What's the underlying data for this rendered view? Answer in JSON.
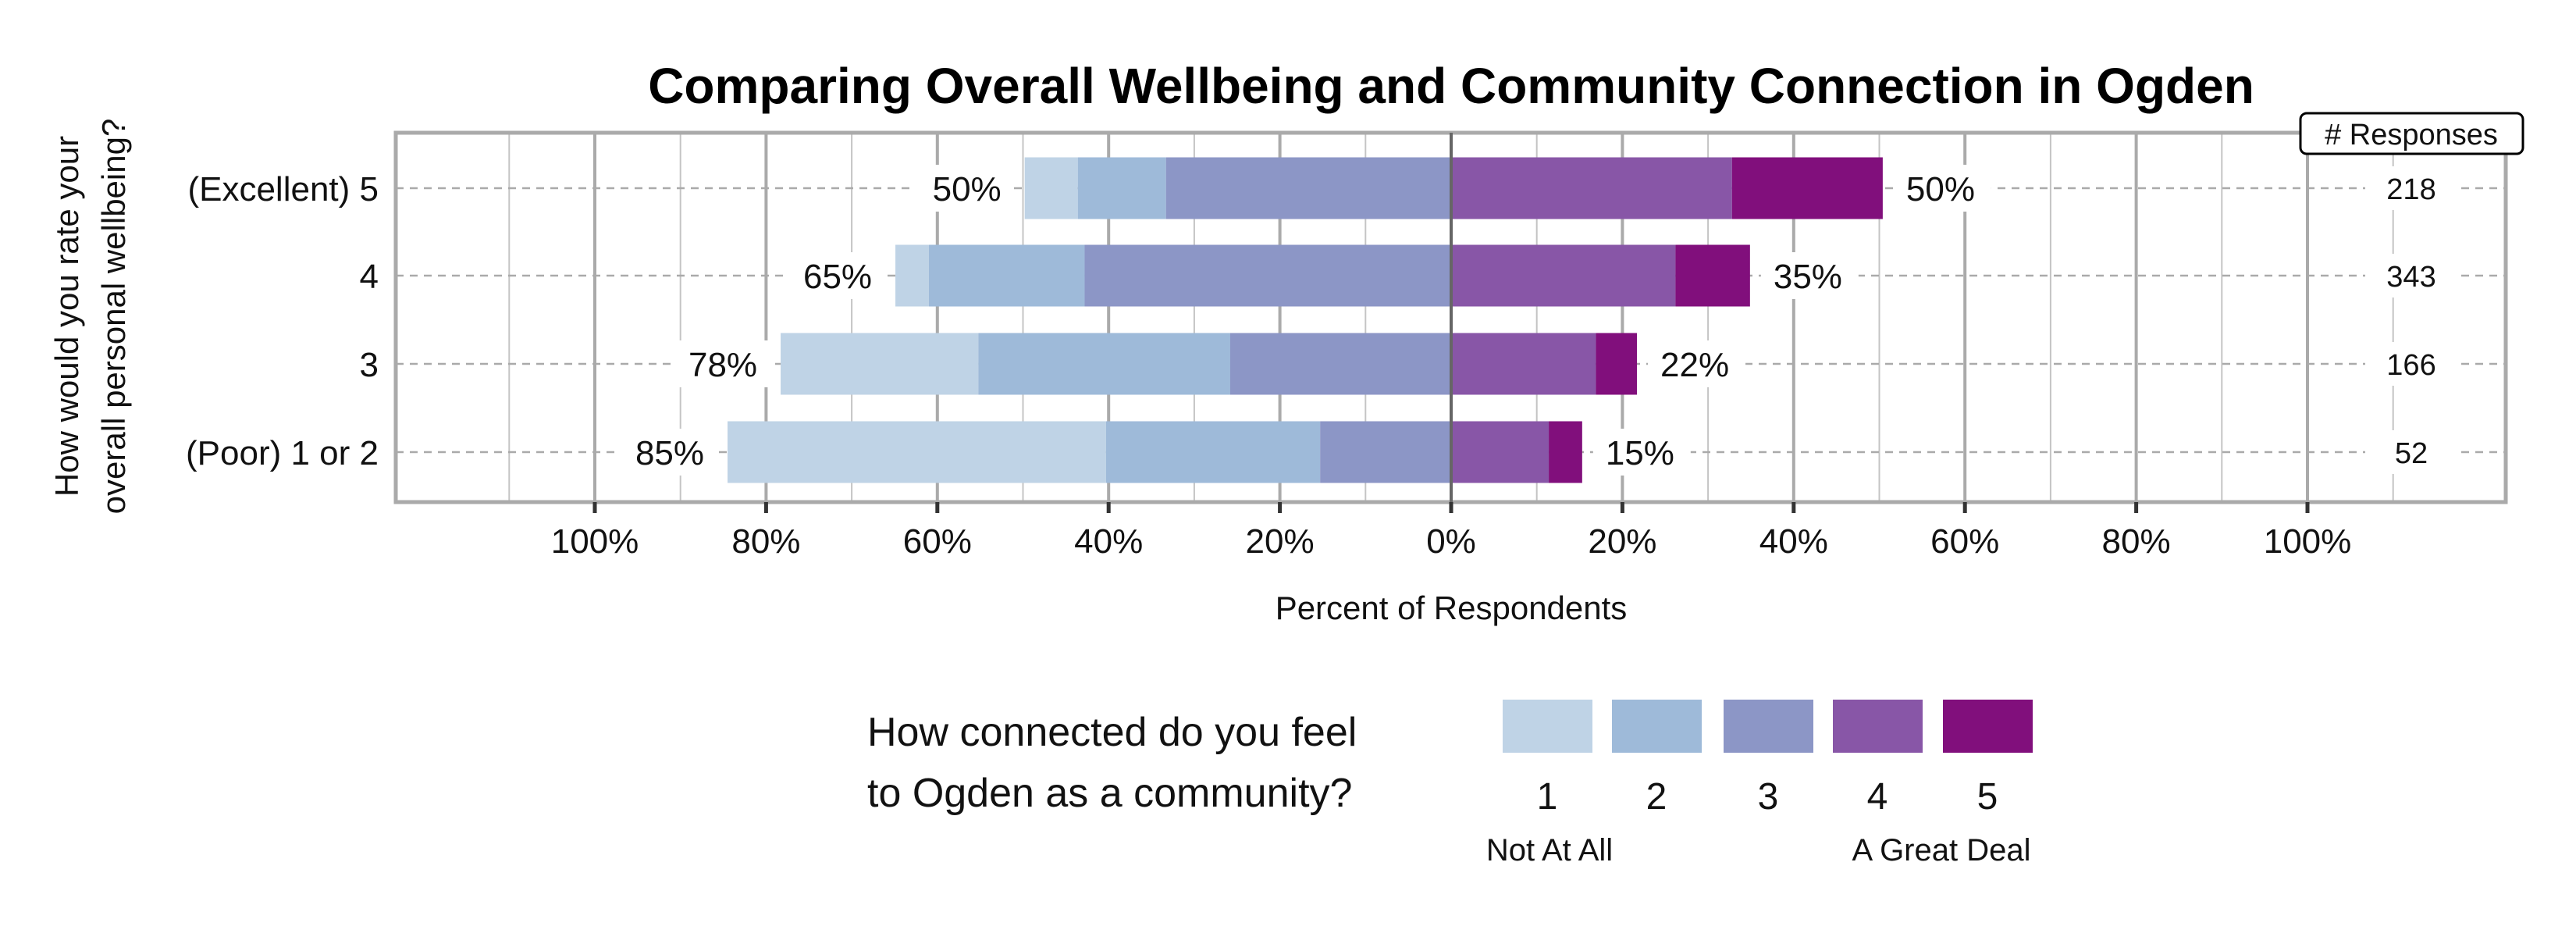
{
  "chart_data": {
    "type": "bar",
    "orientation": "horizontal-diverging-stacked",
    "title": "Comparing Overall Wellbeing and Community Connection in Ogden",
    "xlabel": "Percent of Respondents",
    "ylabel_lines": [
      "How would you rate your",
      "overall personal wellbeing?"
    ],
    "xlim": [
      -100,
      100
    ],
    "x_ticks": [
      "100%",
      "80%",
      "60%",
      "40%",
      "20%",
      "0%",
      "20%",
      "40%",
      "60%",
      "80%",
      "100%"
    ],
    "grid": true,
    "categories": [
      "(Excellent) 5",
      "4",
      "3",
      "(Poor) 1 or 2"
    ],
    "series": [
      {
        "name": "1",
        "side": "left",
        "color": "#bfd3e6",
        "values": [
          6.2,
          3.9,
          23.1,
          44.2
        ]
      },
      {
        "name": "2",
        "side": "left",
        "color": "#9ebad9",
        "values": [
          10.3,
          18.2,
          29.4,
          25.0
        ]
      },
      {
        "name": "3",
        "side": "left",
        "color": "#8c96c6",
        "values": [
          33.3,
          42.8,
          25.8,
          15.3
        ]
      },
      {
        "name": "4",
        "side": "right",
        "color": "#8856a7",
        "values": [
          32.8,
          26.2,
          16.9,
          11.4
        ]
      },
      {
        "name": "5",
        "side": "right",
        "color": "#810f7c",
        "values": [
          17.6,
          8.7,
          4.8,
          3.9
        ]
      }
    ],
    "left_labels": [
      "50%",
      "65%",
      "78%",
      "85%"
    ],
    "right_labels": [
      "50%",
      "35%",
      "22%",
      "15%"
    ],
    "responses_header": "# Responses",
    "responses": [
      "218",
      "343",
      "166",
      "52"
    ],
    "legend": {
      "title_lines": [
        "How connected do you feel",
        "to Ogden as a community?"
      ],
      "low_label": "Not At All",
      "high_label": "A Great Deal",
      "placement": "bottom"
    }
  }
}
